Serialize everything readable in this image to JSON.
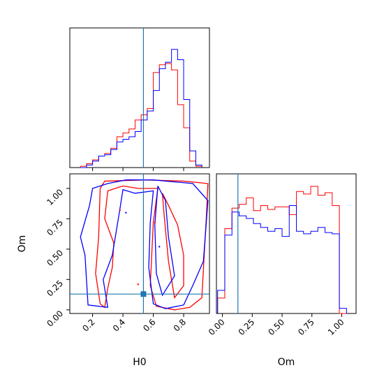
{
  "chart_data": [
    {
      "panel": "H0 marginal",
      "type": "step-histogram",
      "xlim": [
        0.05,
        0.97
      ],
      "truth": 0.535,
      "series": [
        {
          "color": "#ff0000",
          "bins": [
            0.12,
            0.16,
            0.2,
            0.24,
            0.28,
            0.32,
            0.36,
            0.4,
            0.44,
            0.48,
            0.52,
            0.56,
            0.6,
            0.64,
            0.68,
            0.72,
            0.76,
            0.8,
            0.84,
            0.88
          ],
          "counts": [
            0.01,
            0.03,
            0.06,
            0.09,
            0.11,
            0.15,
            0.24,
            0.27,
            0.3,
            0.37,
            0.41,
            0.46,
            0.74,
            0.8,
            0.81,
            0.76,
            0.49,
            0.31,
            0.05,
            0.01
          ]
        },
        {
          "color": "#0000ff",
          "bins": [
            0.12,
            0.16,
            0.2,
            0.24,
            0.28,
            0.32,
            0.36,
            0.4,
            0.44,
            0.48,
            0.52,
            0.56,
            0.6,
            0.64,
            0.68,
            0.72,
            0.76,
            0.8,
            0.84,
            0.88
          ],
          "counts": [
            0.0,
            0.02,
            0.05,
            0.09,
            0.1,
            0.14,
            0.2,
            0.22,
            0.24,
            0.28,
            0.37,
            0.44,
            0.6,
            0.77,
            0.82,
            0.92,
            0.84,
            0.53,
            0.13,
            0.02
          ]
        }
      ]
    },
    {
      "panel": "Om marginal",
      "type": "step-histogram",
      "xlim": [
        -0.05,
        1.12
      ],
      "truth": 0.13,
      "series": [
        {
          "color": "#ff0000",
          "bins": [
            -0.04,
            0.02,
            0.08,
            0.14,
            0.2,
            0.26,
            0.32,
            0.38,
            0.44,
            0.5,
            0.56,
            0.62,
            0.68,
            0.74,
            0.8,
            0.86,
            0.92,
            0.98
          ],
          "counts": [
            0.12,
            0.66,
            0.82,
            0.85,
            0.9,
            0.8,
            0.84,
            0.81,
            0.83,
            0.83,
            0.77,
            0.95,
            0.93,
            0.99,
            0.92,
            0.94,
            0.84,
            0.0
          ]
        },
        {
          "color": "#0000ff",
          "bins": [
            -0.04,
            0.02,
            0.08,
            0.14,
            0.2,
            0.26,
            0.32,
            0.38,
            0.44,
            0.5,
            0.56,
            0.62,
            0.68,
            0.74,
            0.8,
            0.86,
            0.92,
            0.98
          ],
          "counts": [
            0.18,
            0.61,
            0.79,
            0.76,
            0.74,
            0.7,
            0.67,
            0.64,
            0.66,
            0.6,
            0.84,
            0.64,
            0.62,
            0.64,
            0.67,
            0.63,
            0.62,
            0.04
          ]
        }
      ]
    },
    {
      "panel": "H0 vs Om",
      "type": "contour",
      "xlabel": "H0",
      "ylabel": "Om",
      "xlim": [
        0.05,
        0.97
      ],
      "ylim": [
        -0.03,
        1.12
      ],
      "xticks": [
        "0.2",
        "0.4",
        "0.6",
        "0.8"
      ],
      "yticks": [
        "0.00",
        "0.25",
        "0.50",
        "0.75",
        "1.00"
      ],
      "truth": [
        0.535,
        0.13
      ],
      "contours": [
        {
          "color": "#ff0000",
          "points": [
            [
              0.25,
              1.0
            ],
            [
              0.28,
              1.06
            ],
            [
              0.55,
              1.07
            ],
            [
              0.8,
              1.06
            ],
            [
              0.96,
              1.04
            ],
            [
              0.95,
              0.78
            ],
            [
              0.92,
              0.1
            ],
            [
              0.84,
              0.02
            ],
            [
              0.74,
              0.0
            ],
            [
              0.62,
              0.03
            ],
            [
              0.58,
              0.2
            ],
            [
              0.6,
              0.72
            ],
            [
              0.63,
              1.0
            ],
            [
              0.58,
              1.0
            ],
            [
              0.5,
              1.0
            ],
            [
              0.4,
              1.02
            ],
            [
              0.3,
              0.98
            ],
            [
              0.28,
              0.75
            ],
            [
              0.34,
              0.55
            ],
            [
              0.33,
              0.35
            ],
            [
              0.3,
              0.18
            ],
            [
              0.28,
              0.02
            ],
            [
              0.25,
              0.05
            ],
            [
              0.22,
              0.3
            ],
            [
              0.24,
              0.6
            ],
            [
              0.25,
              1.0
            ]
          ]
        },
        {
          "color": "#ff0000",
          "points": [
            [
              0.66,
              0.96
            ],
            [
              0.7,
              0.86
            ],
            [
              0.76,
              0.7
            ],
            [
              0.8,
              0.45
            ],
            [
              0.8,
              0.2
            ],
            [
              0.74,
              0.1
            ],
            [
              0.7,
              0.4
            ],
            [
              0.67,
              0.8
            ],
            [
              0.66,
              0.96
            ]
          ]
        },
        {
          "color": "#0000ff",
          "points": [
            [
              0.3,
              1.04
            ],
            [
              0.42,
              1.07
            ],
            [
              0.6,
              1.07
            ],
            [
              0.86,
              1.04
            ],
            [
              0.96,
              0.9
            ],
            [
              0.93,
              0.4
            ],
            [
              0.86,
              0.2
            ],
            [
              0.8,
              0.04
            ],
            [
              0.68,
              0.01
            ],
            [
              0.6,
              0.05
            ],
            [
              0.57,
              0.35
            ],
            [
              0.58,
              0.72
            ],
            [
              0.6,
              0.98
            ],
            [
              0.48,
              0.96
            ],
            [
              0.4,
              0.99
            ],
            [
              0.38,
              0.83
            ],
            [
              0.33,
              0.45
            ],
            [
              0.27,
              0.25
            ],
            [
              0.3,
              0.02
            ],
            [
              0.17,
              0.04
            ],
            [
              0.15,
              0.45
            ],
            [
              0.12,
              0.6
            ],
            [
              0.18,
              0.86
            ],
            [
              0.2,
              1.0
            ],
            [
              0.3,
              1.04
            ]
          ]
        },
        {
          "color": "#0000ff",
          "points": [
            [
              0.63,
              1.02
            ],
            [
              0.68,
              0.9
            ],
            [
              0.7,
              0.6
            ],
            [
              0.74,
              0.28
            ],
            [
              0.66,
              0.12
            ],
            [
              0.62,
              0.3
            ],
            [
              0.61,
              0.7
            ],
            [
              0.63,
              1.02
            ]
          ]
        }
      ]
    }
  ]
}
